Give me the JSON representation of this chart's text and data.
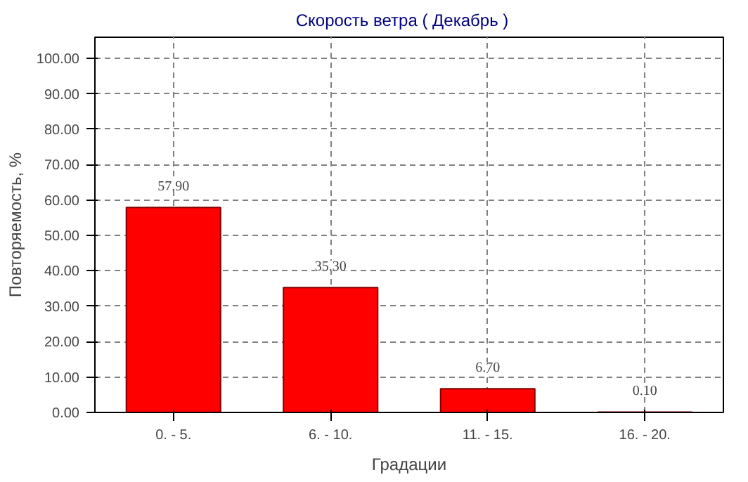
{
  "chart_data": {
    "type": "bar",
    "title": "Скорость ветра    ( Декабрь )",
    "xlabel": "Градации",
    "ylabel": "Повторяемость, %",
    "categories": [
      "0. - 5.",
      "6. - 10.",
      "11. - 15.",
      "16. - 20."
    ],
    "values": [
      57.9,
      35.3,
      6.7,
      0.1
    ],
    "value_labels": [
      "57.90",
      "35.30",
      "6.70",
      "0.10"
    ],
    "color": "#ff0000",
    "ylim": [
      0,
      106
    ],
    "yticks": [
      {
        "value": 0,
        "label": "0.00"
      },
      {
        "value": 10,
        "label": "10.00"
      },
      {
        "value": 20,
        "label": "20.00"
      },
      {
        "value": 30,
        "label": "30.00"
      },
      {
        "value": 40,
        "label": "40.00"
      },
      {
        "value": 50,
        "label": "50.00"
      },
      {
        "value": 60,
        "label": "60.00"
      },
      {
        "value": 70,
        "label": "70.00"
      },
      {
        "value": 80,
        "label": "80.00"
      },
      {
        "value": 90,
        "label": "90.00"
      },
      {
        "value": 100,
        "label": "100.00"
      }
    ],
    "grid": true
  }
}
